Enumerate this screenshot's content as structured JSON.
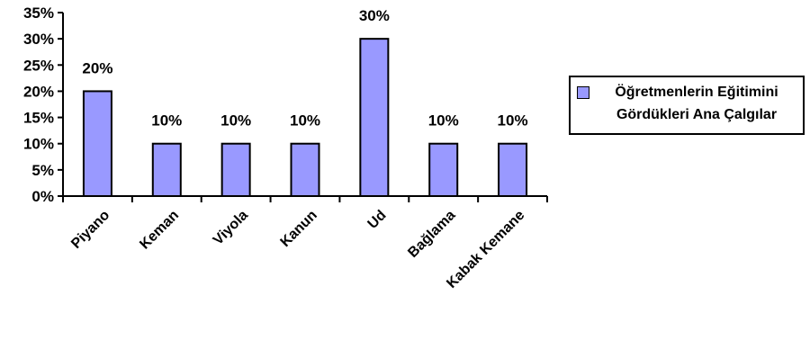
{
  "chart_data": {
    "type": "bar",
    "categories": [
      "Piyano",
      "Keman",
      "Viyola",
      "Kanun",
      "Ud",
      "Bağlama",
      "Kabak Kemane"
    ],
    "values": [
      20,
      10,
      10,
      10,
      30,
      10,
      10
    ],
    "value_labels": [
      "20%",
      "10%",
      "10%",
      "10%",
      "30%",
      "10%",
      "10%"
    ],
    "series": [
      {
        "name": "Öğretmenlerin Eğitimini Gördükleri Ana Çalgılar",
        "values": [
          20,
          10,
          10,
          10,
          30,
          10,
          10
        ]
      }
    ],
    "y_ticks": [
      "0%",
      "5%",
      "10%",
      "15%",
      "20%",
      "25%",
      "30%",
      "35%"
    ],
    "ylim": [
      0,
      35
    ],
    "title": "",
    "xlabel": "",
    "ylabel": "",
    "grid": false,
    "legend_position": "right",
    "bar_color": "#9999ff",
    "border_color": "#000000"
  },
  "legend": {
    "line1": "Öğretmenlerin Eğitimini",
    "line2": "Gördükleri Ana Çalgılar"
  }
}
